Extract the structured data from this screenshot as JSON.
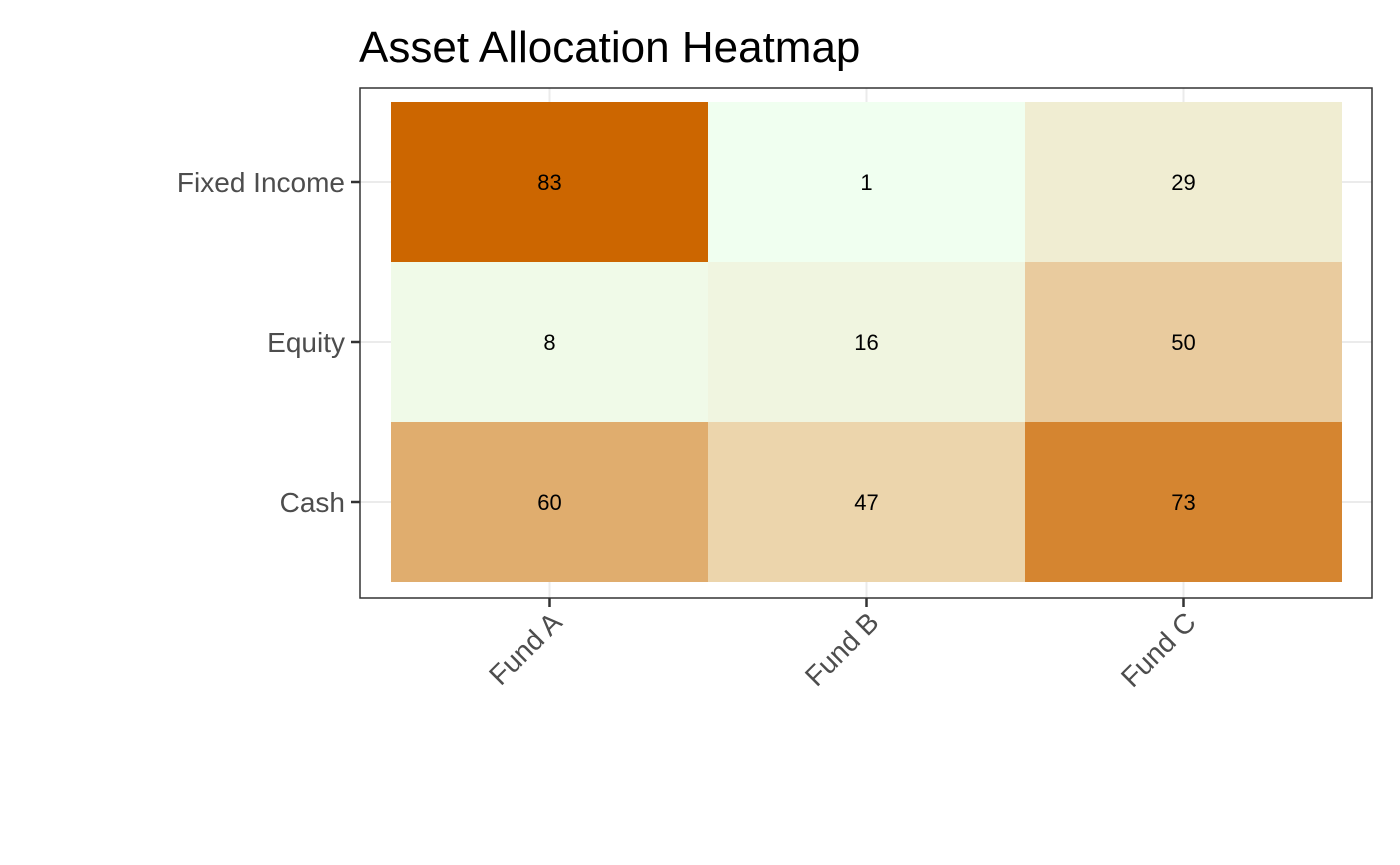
{
  "chart_data": {
    "type": "heatmap",
    "title": "Asset Allocation Heatmap",
    "xlabel": "",
    "ylabel": "",
    "x_categories": [
      "Fund A",
      "Fund B",
      "Fund C"
    ],
    "y_categories": [
      "Cash",
      "Equity",
      "Fixed Income"
    ],
    "values": [
      [
        60,
        47,
        73
      ],
      [
        8,
        16,
        50
      ],
      [
        83,
        1,
        29
      ]
    ],
    "value_range": [
      1,
      83
    ],
    "color_scale": {
      "low": "#f0fff0",
      "mid": "#f0e4c4",
      "high": "#cc6600"
    },
    "cell_labels_shown": true,
    "grid": true,
    "legend": "none"
  }
}
